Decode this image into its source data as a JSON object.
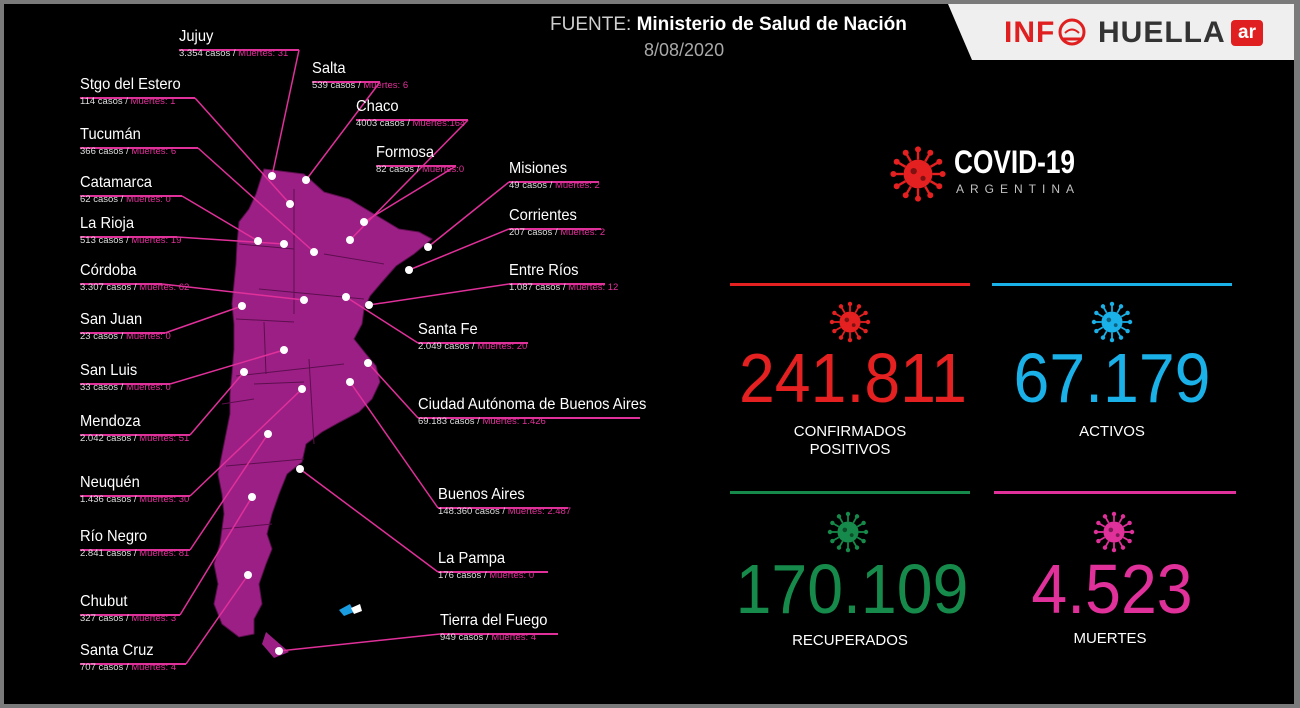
{
  "header": {
    "source_label": "FUENTE:",
    "source_name": "Ministerio de Salud de Nación",
    "date": "8/08/2020"
  },
  "logo": {
    "info": "INF",
    "huella": "HUELLA",
    "ar": "ar"
  },
  "covid": {
    "title": "COVID-19",
    "subtitle": "ARGENTINA"
  },
  "colors": {
    "map": "#9c1f86",
    "leader": "#e0309a",
    "confirmed": "#e52020",
    "active": "#1ab0e8",
    "recovered": "#168a4a",
    "deaths": "#e0309a"
  },
  "stats": {
    "confirmed": {
      "value": "241.811",
      "label_line1": "CONFIRMADOS",
      "label_line2": "POSITIVOS"
    },
    "active": {
      "value": "67.179",
      "label": "ACTIVOS"
    },
    "recovered": {
      "value": "170.109",
      "label": "RECUPERADOS"
    },
    "deaths": {
      "value": "4.523",
      "label": "MUERTES"
    }
  },
  "provinces": [
    {
      "name": "Jujuy",
      "casos": "3.354 casos /",
      "muertes": "Muertes: 31"
    },
    {
      "name": "Salta",
      "casos": "539 casos /",
      "muertes": "Muertes: 6"
    },
    {
      "name": "Stgo del Estero",
      "casos": "114 casos /",
      "muertes": "Muertes: 1"
    },
    {
      "name": "Chaco",
      "casos": "4003 casos /",
      "muertes": "Muertes:164"
    },
    {
      "name": "Tucumán",
      "casos": "366 casos /",
      "muertes": "Muertes: 6"
    },
    {
      "name": "Formosa",
      "casos": "82 casos /",
      "muertes": "Muertes:0"
    },
    {
      "name": "Misiones",
      "casos": "49 casos /",
      "muertes": "Muertes: 2"
    },
    {
      "name": "Catamarca",
      "casos": "62 casos /",
      "muertes": "Muertes: 0"
    },
    {
      "name": "Corrientes",
      "casos": "207 casos /",
      "muertes": "Muertes: 2"
    },
    {
      "name": "La Rioja",
      "casos": "513 casos /",
      "muertes": "Muertes: 19"
    },
    {
      "name": "Entre Ríos",
      "casos": "1.087 casos /",
      "muertes": "Muertes: 12"
    },
    {
      "name": "Córdoba",
      "casos": "3.307 casos /",
      "muertes": "Muertes: 62"
    },
    {
      "name": "San Juan",
      "casos": "23 casos /",
      "muertes": "Muertes: 0"
    },
    {
      "name": "Santa Fe",
      "casos": "2.049 casos /",
      "muertes": "Muertes: 20"
    },
    {
      "name": "San Luis",
      "casos": "33 casos /",
      "muertes": "Muertes: 0"
    },
    {
      "name": "Ciudad Autónoma de Buenos Aires",
      "casos": "69.183 casos /",
      "muertes": "Muertes: 1.426"
    },
    {
      "name": "Mendoza",
      "casos": "2.042 casos /",
      "muertes": "Muertes: 51"
    },
    {
      "name": "Neuquén",
      "casos": "1.436 casos /",
      "muertes": "Muertes: 30"
    },
    {
      "name": "Buenos Aires",
      "casos": "148.360 casos /",
      "muertes": "Muertes: 2.487"
    },
    {
      "name": "Río Negro",
      "casos": "2.841 casos /",
      "muertes": "Muertes: 81"
    },
    {
      "name": "La Pampa",
      "casos": "176 casos /",
      "muertes": "Muertes: 0"
    },
    {
      "name": "Chubut",
      "casos": "327 casos /",
      "muertes": "Muertes: 3"
    },
    {
      "name": "Tierra del Fuego",
      "casos": "949 casos /",
      "muertes": "Muertes: 4"
    },
    {
      "name": "Santa Cruz",
      "casos": "707 casos /",
      "muertes": "Muertes: 4"
    }
  ]
}
